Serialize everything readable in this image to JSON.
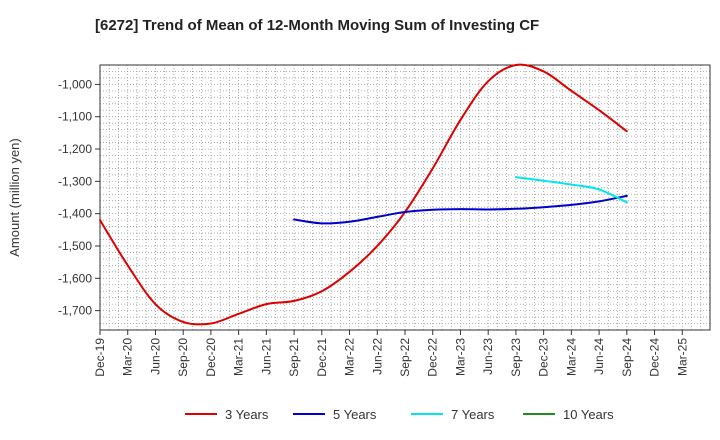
{
  "chart_data": {
    "type": "line",
    "title": "[6272]  Trend of Mean of 12-Month Moving Sum of Investing CF",
    "xlabel": "",
    "ylabel": "Amount (million yen)",
    "ylim": [
      -1760,
      -940
    ],
    "yticks": [
      -1700,
      -1600,
      -1500,
      -1400,
      -1300,
      -1200,
      -1100,
      -1000
    ],
    "ytick_labels": [
      "-1,700",
      "-1,600",
      "-1,500",
      "-1,400",
      "-1,300",
      "-1,200",
      "-1,100",
      "-1,000"
    ],
    "x_tick_labels": [
      "Dec-19",
      "Mar-20",
      "Jun-20",
      "Sep-20",
      "Dec-20",
      "Mar-21",
      "Jun-21",
      "Sep-21",
      "Dec-21",
      "Mar-22",
      "Jun-22",
      "Sep-22",
      "Dec-22",
      "Mar-23",
      "Jun-23",
      "Sep-23",
      "Dec-23",
      "Mar-24",
      "Jun-24",
      "Sep-24",
      "Dec-24",
      "Mar-25"
    ],
    "x_months_start": "Dec-19",
    "x_months_span": 66,
    "grid": true,
    "legend_position": "bottom",
    "series": [
      {
        "name": "3 Years",
        "color": "#dd0000",
        "x": [
          0,
          3,
          6,
          9,
          12,
          15,
          18,
          21,
          24,
          27,
          30,
          33,
          36,
          39,
          42,
          45,
          48,
          51,
          54,
          57
        ],
        "values": [
          -1420,
          -1560,
          -1680,
          -1735,
          -1740,
          -1710,
          -1680,
          -1670,
          -1640,
          -1580,
          -1500,
          -1395,
          -1260,
          -1110,
          -990,
          -940,
          -960,
          -1020,
          -1080,
          -1145
        ]
      },
      {
        "name": "5 Years",
        "color": "#0000cc",
        "x": [
          21,
          24,
          27,
          30,
          33,
          36,
          39,
          42,
          45,
          48,
          51,
          54,
          57
        ],
        "values": [
          -1418,
          -1430,
          -1425,
          -1410,
          -1395,
          -1388,
          -1386,
          -1387,
          -1385,
          -1380,
          -1373,
          -1362,
          -1345
        ]
      },
      {
        "name": "7 Years",
        "color": "#00e5ee",
        "x": [
          45,
          48,
          51,
          54,
          57
        ],
        "values": [
          -1287,
          -1298,
          -1310,
          -1325,
          -1365
        ]
      },
      {
        "name": "10 Years",
        "color": "#228b22",
        "x": [],
        "values": []
      }
    ]
  }
}
